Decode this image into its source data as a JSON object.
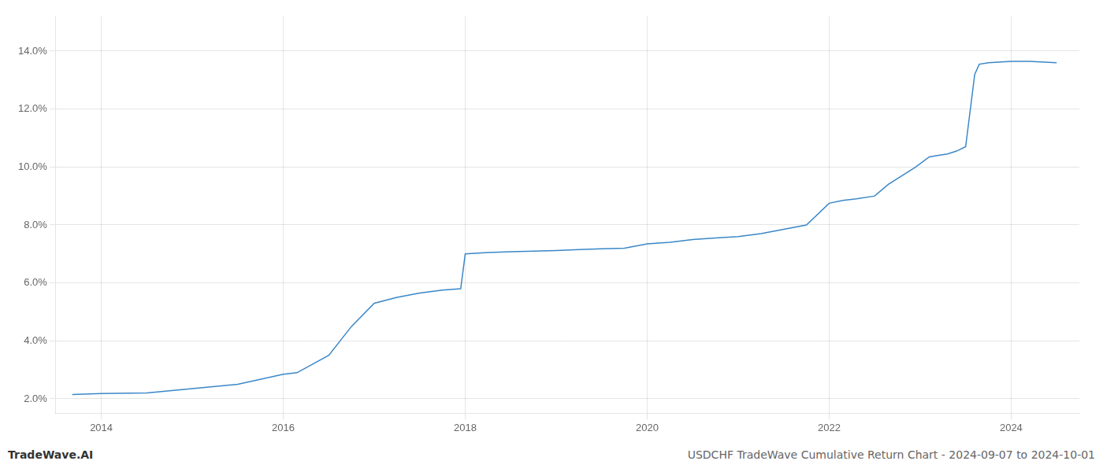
{
  "chart_data": {
    "type": "line",
    "x": [
      2013.68,
      2014.0,
      2014.5,
      2015.0,
      2015.5,
      2016.0,
      2016.15,
      2016.5,
      2016.75,
      2017.0,
      2017.25,
      2017.5,
      2017.75,
      2017.95,
      2018.0,
      2018.25,
      2018.5,
      2018.75,
      2019.0,
      2019.25,
      2019.5,
      2019.75,
      2020.0,
      2020.25,
      2020.5,
      2020.75,
      2021.0,
      2021.25,
      2021.5,
      2021.75,
      2022.0,
      2022.15,
      2022.3,
      2022.5,
      2022.65,
      2022.8,
      2022.95,
      2023.1,
      2023.2,
      2023.3,
      2023.4,
      2023.5,
      2023.6,
      2023.65,
      2023.75,
      2024.0,
      2024.2,
      2024.5
    ],
    "values": [
      2.15,
      2.18,
      2.2,
      2.35,
      2.5,
      2.85,
      2.9,
      3.5,
      4.5,
      5.3,
      5.5,
      5.65,
      5.75,
      5.8,
      7.0,
      7.05,
      7.08,
      7.1,
      7.12,
      7.15,
      7.18,
      7.2,
      7.35,
      7.4,
      7.5,
      7.55,
      7.6,
      7.7,
      7.85,
      8.0,
      8.75,
      8.85,
      8.9,
      9.0,
      9.4,
      9.7,
      10.0,
      10.35,
      10.4,
      10.45,
      10.55,
      10.7,
      13.2,
      13.55,
      13.6,
      13.65,
      13.65,
      13.6
    ],
    "color": "#3a87c8",
    "xlim": [
      2013.5,
      2024.75
    ],
    "xticks": [
      2014,
      2016,
      2018,
      2020,
      2022,
      2024
    ],
    "ylim": [
      1.5,
      15.2
    ],
    "yticks": [
      {
        "value": 2.0,
        "label": "2.0%"
      },
      {
        "value": 4.0,
        "label": "4.0%"
      },
      {
        "value": 6.0,
        "label": "6.0%"
      },
      {
        "value": 8.0,
        "label": "8.0%"
      },
      {
        "value": 10.0,
        "label": "10.0%"
      },
      {
        "value": 12.0,
        "label": "12.0%"
      },
      {
        "value": 14.0,
        "label": "14.0%"
      }
    ],
    "grid": true,
    "annotations": [
      "TradeWave.AI",
      "USDCHF TradeWave Cumulative Return Chart - 2024-09-07 to 2024-10-01"
    ]
  }
}
